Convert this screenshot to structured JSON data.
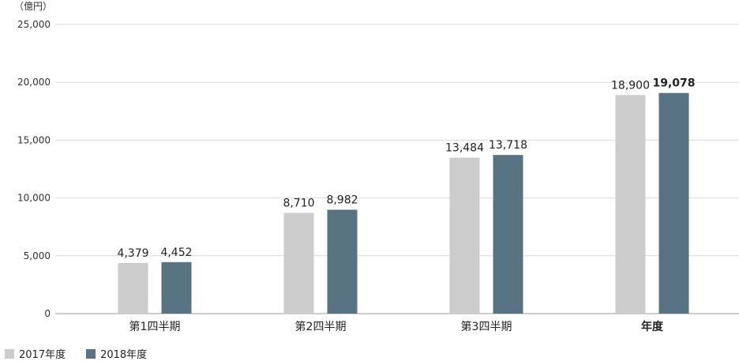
{
  "chart_data": {
    "type": "bar",
    "unit_label": "（億円）",
    "categories": [
      "第1四半期",
      "第2四半期",
      "第3四半期",
      "年度"
    ],
    "series": [
      {
        "name": "2017年度",
        "values": [
          4379,
          8710,
          13484,
          18900
        ],
        "labels": [
          "4,379",
          "8,710",
          "13,484",
          "18,900"
        ],
        "color": "#cccccc"
      },
      {
        "name": "2018年度",
        "values": [
          4452,
          8982,
          13718,
          19078
        ],
        "labels": [
          "4,452",
          "8,982",
          "13,718",
          "19,078"
        ],
        "color": "#587482"
      }
    ],
    "highlight_category_index": 3,
    "highlight_color": "#587482",
    "ylim": [
      0,
      25000
    ],
    "yticks": [
      0,
      5000,
      10000,
      15000,
      20000,
      25000
    ],
    "ytick_labels": [
      "0",
      "5,000",
      "10,000",
      "15,000",
      "20,000",
      "25,000"
    ],
    "grid": true,
    "legend_position": "bottom-left"
  }
}
